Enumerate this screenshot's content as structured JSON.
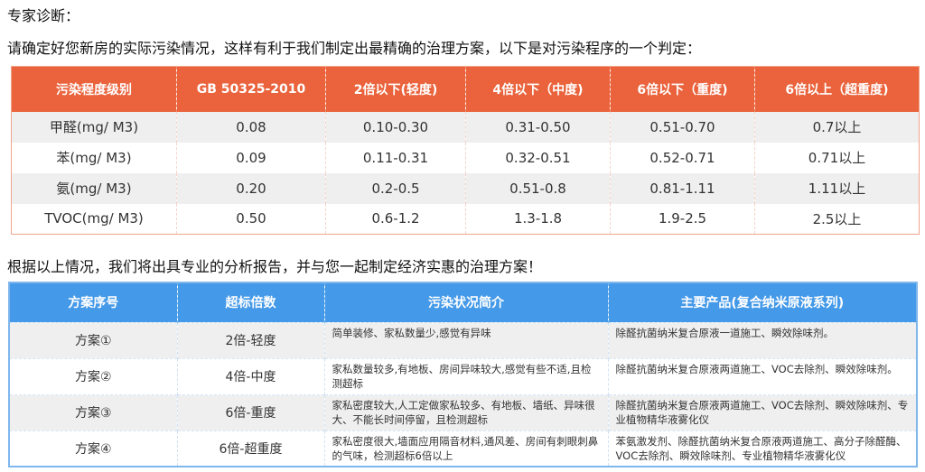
{
  "intro": {
    "heading": "专家诊断：",
    "line": "请确定好您新房的实际污染情况，这样有利于我们制定出最精确的治理方案，以下是对污染程序的一个判定："
  },
  "colors": {
    "table1_header": "#ea633c",
    "table2_header": "#4499e8"
  },
  "table1": {
    "headers": [
      "污染程度级别",
      "GB 50325-2010",
      "2倍以下(轻度)",
      "4倍以下（中度)",
      "6倍以下（重度)",
      "6倍以上（超重度)"
    ],
    "rows": [
      [
        "甲醛(mg/ M3)",
        "0.08",
        "0.10-0.30",
        "0.31-0.50",
        "0.51-0.70",
        "0.7以上"
      ],
      [
        "苯(mg/ M3)",
        "0.09",
        "0.11-0.31",
        "0.32-0.51",
        "0.52-0.71",
        "0.71以上"
      ],
      [
        "氨(mg/ M3)",
        "0.20",
        "0.2-0.5",
        "0.51-0.8",
        "0.81-1.11",
        "1.11以上"
      ],
      [
        "TVOC(mg/ M3)",
        "0.50",
        "0.6-1.2",
        "1.3-1.8",
        "1.9-2.5",
        "2.5以上"
      ]
    ]
  },
  "summary": "根据以上情况，我们将出具专业的分析报告，并与您一起制定经济实惠的治理方案！",
  "table2": {
    "headers": [
      "方案序号",
      "超标倍数",
      "污染状况简介",
      "主要产品(复合纳米原液系列)"
    ],
    "rows": [
      [
        "方案①",
        "2倍-轻度",
        "简单装修、家私数量少,感觉有异味",
        "除醛抗菌纳米复合原液一道施工、瞬效除味剂。"
      ],
      [
        "方案②",
        "4倍-中度",
        "家私数量较多,有地板、房间异味较大,感觉有些不适,且检测超标",
        "除醛抗菌纳米复合原液两道施工、VOC去除剂、瞬效除味剂。"
      ],
      [
        "方案③",
        "6倍-重度",
        "家私密度较大,人工定做家私较多、有地板、墙纸、异味很大、不能长时间停留，且检测超标",
        "除醛抗菌纳米复合原液两道施工、VOC去除剂、瞬效除味剂、专业植物精华液雾化仪"
      ],
      [
        "方案④",
        "6倍-超重度",
        "家私密度很大,墙面应用隔音材料,通风差、房间有刺眼刺鼻的气味，检测超标6倍以上",
        "苯氨激发剂、除醛抗菌纳米复合原液两道施工、高分子除醛酶、VOC去除剂、瞬效除味剂、专业植物精华液雾化仪"
      ]
    ]
  }
}
